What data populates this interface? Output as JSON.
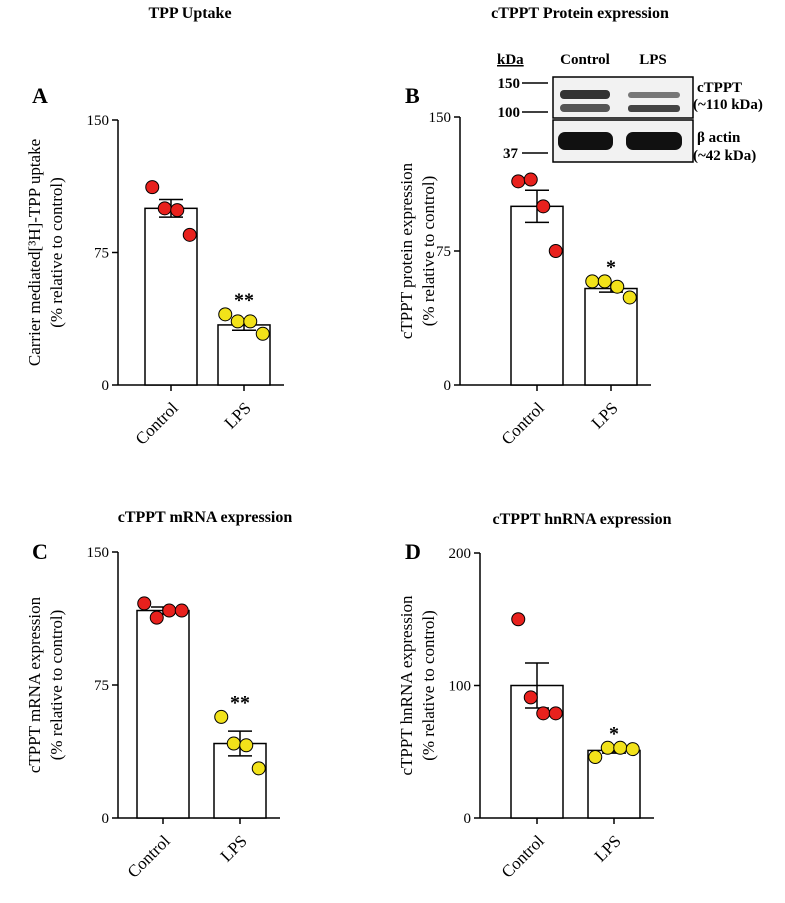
{
  "chart_data": [
    {
      "type": "bar",
      "panel": "A",
      "title": "TPP Uptake",
      "ylabel": [
        "Carrier mediated[³H]-TPP uptake",
        "(% relative to control)"
      ],
      "categories": [
        "Control",
        "LPS"
      ],
      "values": [
        100,
        34
      ],
      "errors": [
        5,
        3
      ],
      "points": [
        [
          112,
          100,
          99,
          85
        ],
        [
          40,
          36,
          36,
          29
        ]
      ],
      "point_colors": [
        "#e8211d",
        "#f2e21a"
      ],
      "annotations": [
        null,
        "**"
      ],
      "ylim": [
        0,
        150
      ],
      "yticks": [
        0,
        75,
        150
      ]
    },
    {
      "type": "bar",
      "panel": "B",
      "title": "cTPPT Protein expression",
      "ylabel": [
        "cTPPT protein expression",
        "(% relative to control)"
      ],
      "categories": [
        "Control",
        "LPS"
      ],
      "values": [
        100,
        54
      ],
      "errors": [
        9,
        2
      ],
      "points": [
        [
          114,
          115,
          100,
          75
        ],
        [
          58,
          58,
          55,
          49
        ]
      ],
      "point_colors": [
        "#e8211d",
        "#f2e21a"
      ],
      "annotations": [
        null,
        "*"
      ],
      "ylim": [
        0,
        150
      ],
      "yticks": [
        0,
        75,
        150
      ],
      "inset": {
        "kda": "kDa",
        "lanes": [
          "Control",
          "LPS"
        ],
        "markers": [
          "150",
          "100",
          "37"
        ],
        "bands": [
          "cTPPT",
          "(~110 kDa)",
          "β actin",
          "(~42 kDa)"
        ]
      }
    },
    {
      "type": "bar",
      "panel": "C",
      "title": "cTPPT mRNA expression",
      "ylabel": [
        "cTPPT mRNA expression",
        "(% relative to control)"
      ],
      "categories": [
        "Control",
        "LPS"
      ],
      "values": [
        117,
        42
      ],
      "errors": [
        2,
        7
      ],
      "points": [
        [
          121,
          113,
          117,
          117
        ],
        [
          57,
          42,
          41,
          28
        ]
      ],
      "point_colors": [
        "#e8211d",
        "#f2e21a"
      ],
      "annotations": [
        null,
        "**"
      ],
      "ylim": [
        0,
        150
      ],
      "yticks": [
        0,
        75,
        150
      ]
    },
    {
      "type": "bar",
      "panel": "D",
      "title": "cTPPT hnRNA expression",
      "ylabel": [
        "cTPPT hnRNA expression",
        "(% relative to control)"
      ],
      "categories": [
        "Control",
        "LPS"
      ],
      "values": [
        100,
        51
      ],
      "errors": [
        17,
        2
      ],
      "points": [
        [
          150,
          91,
          79,
          79
        ],
        [
          46,
          53,
          53,
          52
        ]
      ],
      "point_colors": [
        "#e8211d",
        "#f2e21a"
      ],
      "annotations": [
        null,
        "*"
      ],
      "ylim": [
        0,
        200
      ],
      "yticks": [
        0,
        100,
        200
      ]
    }
  ]
}
